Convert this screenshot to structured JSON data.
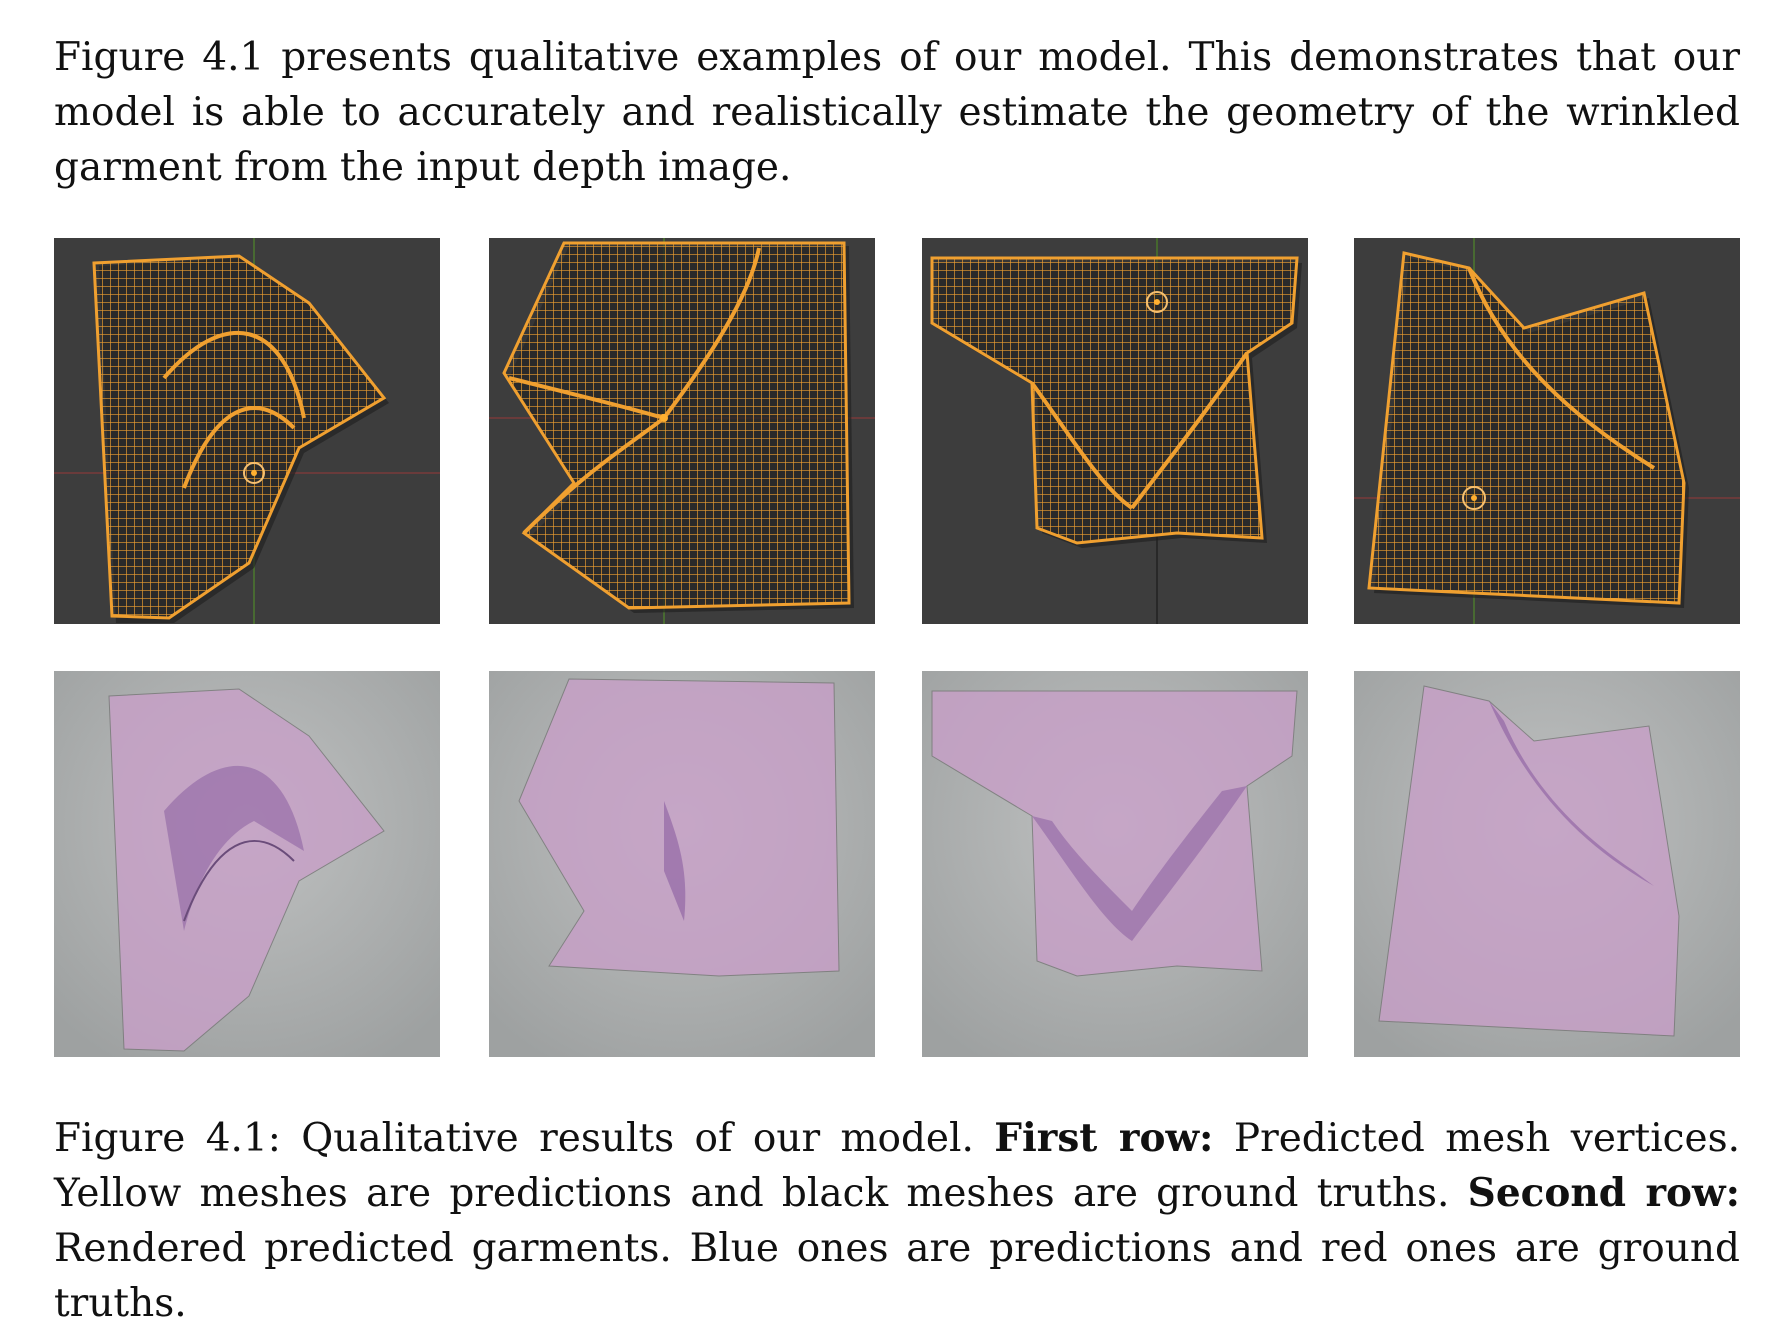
{
  "intro_paragraph": "Figure 4.1 presents qualitative examples of our model. This demonstrates that our model is able to accurately and realistically estimate the geometry of the wrinkled garment from the input depth image.",
  "caption": {
    "prefix": "Figure 4.1: Qualitative results of our model.",
    "first_row_label": "First row:",
    "first_row_text": "Predicted mesh vertices. Yellow meshes are predictions and black meshes are ground truths.",
    "second_row_label": "Second row:",
    "second_row_text": "Rendered predicted garments. Blue ones are predictions and red ones are ground truths."
  },
  "colors": {
    "wireframe_bg": "#3d3d3d",
    "prediction_mesh": "#f0a030",
    "ground_truth_mesh": "#111111",
    "render_bg": "#a9acac",
    "render_garment": "#c8a0c8"
  }
}
